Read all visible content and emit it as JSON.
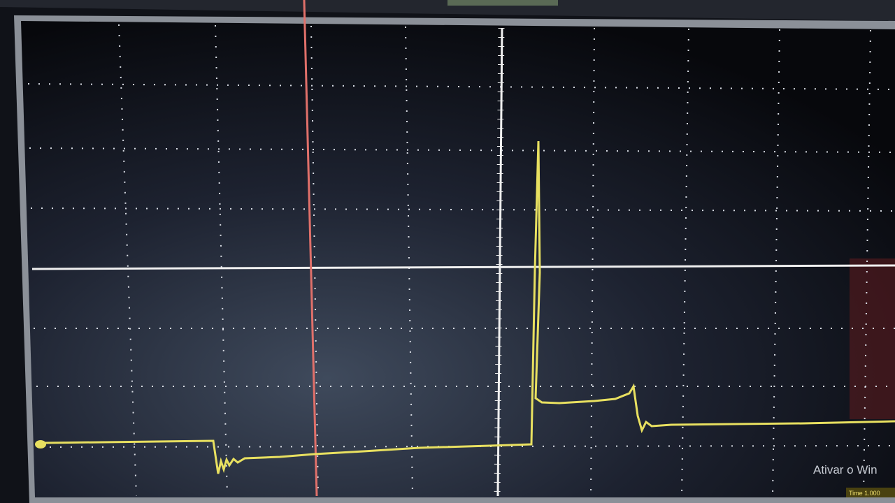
{
  "watermark": {
    "title": "Ativar o Win",
    "time": "Time 1.000"
  }
}
